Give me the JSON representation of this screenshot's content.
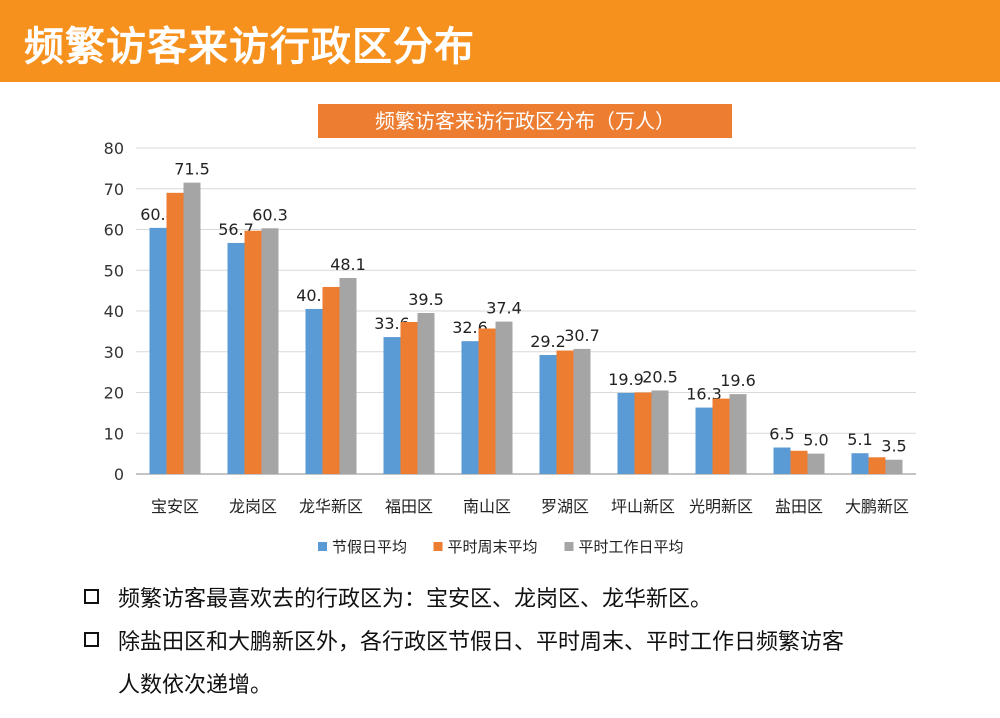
{
  "header": {
    "title": "频繁访客来访行政区分布"
  },
  "chart_data": {
    "type": "bar",
    "title": "频繁访客来访行政区分布（万人）",
    "categories": [
      "宝安区",
      "龙岗区",
      "龙华新区",
      "福田区",
      "南山区",
      "罗湖区",
      "坪山新区",
      "光明新区",
      "盐田区",
      "大鹏新区"
    ],
    "series": [
      {
        "name": "节假日平均",
        "color": "#5b9bd5",
        "values": [
          60.4,
          56.7,
          40.5,
          33.6,
          32.6,
          29.2,
          19.9,
          16.3,
          6.5,
          5.1
        ],
        "labels": [
          "60.4",
          "56.7",
          "40.5",
          "33.6",
          "32.6",
          "29.2",
          "19.9",
          "16.3",
          "6.5",
          "5.1"
        ]
      },
      {
        "name": "平时周末平均",
        "color": "#ed7d31",
        "values": [
          69.0,
          59.7,
          45.9,
          37.3,
          35.7,
          30.3,
          20.0,
          18.5,
          5.7,
          4.1
        ],
        "labels": [
          "",
          "",
          "",
          "",
          "",
          "",
          "",
          "",
          "",
          ""
        ]
      },
      {
        "name": "平时工作日平均",
        "color": "#a5a5a5",
        "values": [
          71.5,
          60.3,
          48.1,
          39.5,
          37.4,
          30.7,
          20.5,
          19.6,
          5.0,
          3.5
        ],
        "labels": [
          "71.5",
          "60.3",
          "48.1",
          "39.5",
          "37.4",
          "30.7",
          "20.5",
          "19.6",
          "5.0",
          "3.5"
        ]
      }
    ],
    "ylim": [
      0,
      80
    ],
    "yticks": [
      "0",
      "10",
      "20",
      "30",
      "40",
      "50",
      "60",
      "70",
      "80"
    ],
    "grid": true,
    "legend": "bottom"
  },
  "bullets": [
    {
      "lines": [
        "频繁访客最喜欢去的行政区为：宝安区、龙岗区、龙华新区。"
      ]
    },
    {
      "lines": [
        "除盐田区和大鹏新区外，各行政区节假日、平时周末、平时工作日频繁访客",
        "人数依次递增。"
      ]
    }
  ]
}
